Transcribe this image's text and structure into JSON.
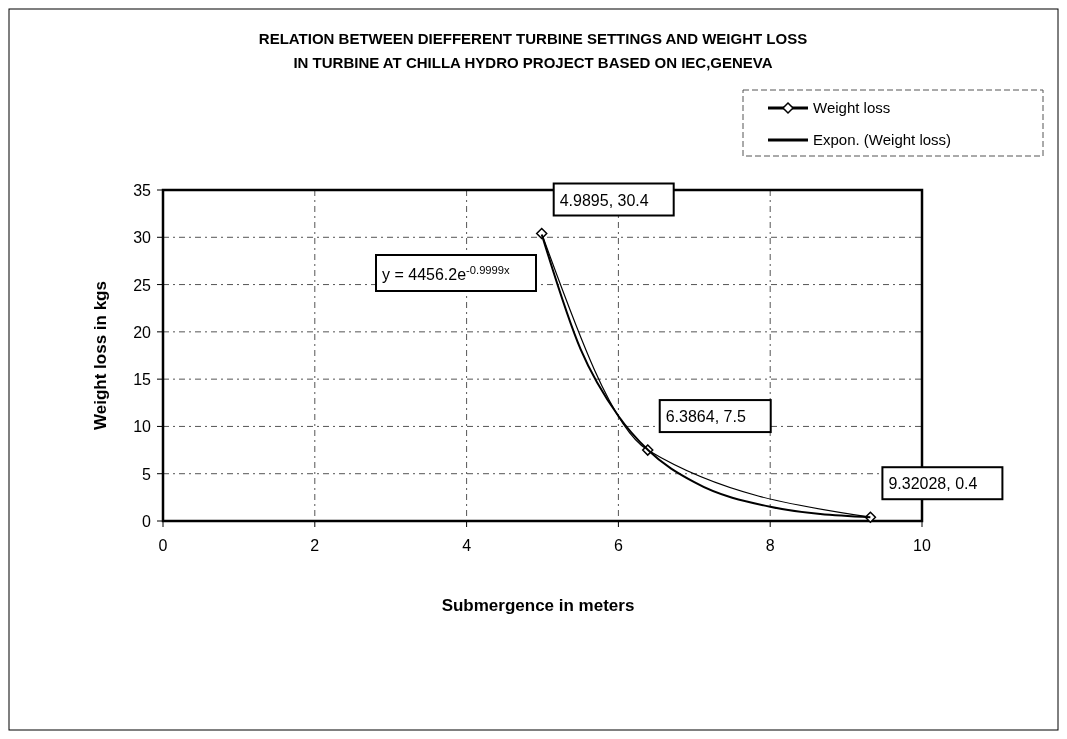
{
  "chart_data": {
    "type": "line",
    "title": "RELATION BETWEEN DIEFFERENT TURBINE SETTINGS AND WEIGHT LOSS\nIN TURBINE AT CHILLA HYDRO PROJECT BASED ON IEC,GENEVA",
    "xlabel": "Submergence in meters",
    "ylabel": "Weight loss in kgs",
    "xlim": [
      0,
      10
    ],
    "ylim": [
      0,
      35
    ],
    "xticks": [
      0,
      2,
      4,
      6,
      8,
      10
    ],
    "yticks": [
      0,
      5,
      10,
      15,
      20,
      25,
      30,
      35
    ],
    "grid": true,
    "legend": "top right",
    "marker": "diamond",
    "series": [
      {
        "name": "Weight loss",
        "color": "#000000",
        "x": [
          4.9895,
          6.3864,
          9.32028
        ],
        "values": [
          30.4,
          7.5,
          0.4
        ]
      },
      {
        "name": "Expon. (Weight loss)",
        "color": "#000000",
        "marker": "none",
        "x": [
          4.99,
          5.5,
          6,
          6.39,
          7,
          8,
          9.32
        ],
        "values": [
          30.3,
          18.2,
          11.1,
          7.5,
          4.1,
          1.5,
          0.4
        ]
      }
    ],
    "annotations": [
      {
        "text": "4.9895, 30.4",
        "x": 4.9895,
        "y": 30.4
      },
      {
        "text": "6.3864, 7.5",
        "x": 6.3864,
        "y": 7.5
      },
      {
        "text": "9.32028, 0.4",
        "x": 9.32028,
        "y": 0.4
      },
      "y = 4456.2e$^{-0.9999x}$"
    ]
  }
}
